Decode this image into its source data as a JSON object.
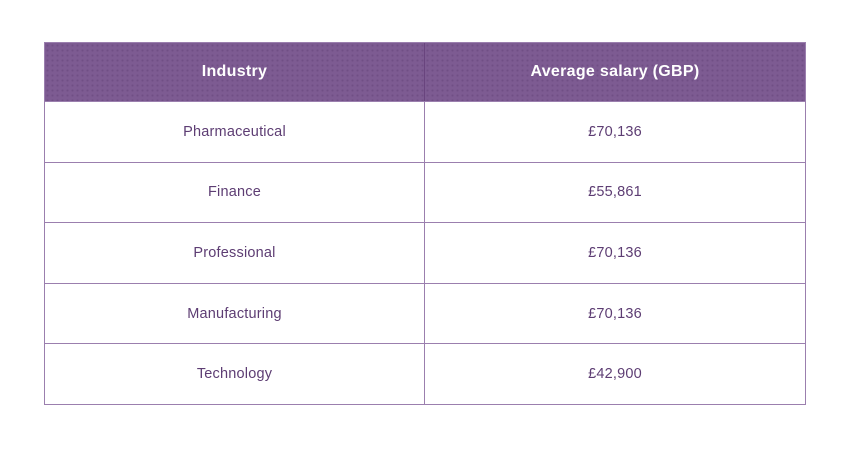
{
  "colors": {
    "header_bg": "#7d5b92",
    "border": "#9b7fae",
    "header_text": "#ffffff",
    "body_text": "#5d3d73"
  },
  "table": {
    "columns": {
      "industry": "Industry",
      "salary": "Average salary (GBP)"
    },
    "rows": [
      {
        "industry": "Pharmaceutical",
        "salary": "£70,136"
      },
      {
        "industry": "Finance",
        "salary": "£55,861"
      },
      {
        "industry": "Professional",
        "salary": "£70,136"
      },
      {
        "industry": "Manufacturing",
        "salary": "£70,136"
      },
      {
        "industry": "Technology",
        "salary": "£42,900"
      }
    ]
  },
  "chart_data": {
    "type": "table",
    "title": "",
    "columns": [
      "Industry",
      "Average salary (GBP)"
    ],
    "rows": [
      [
        "Pharmaceutical",
        "£70,136"
      ],
      [
        "Finance",
        "£55,861"
      ],
      [
        "Professional",
        "£70,136"
      ],
      [
        "Manufacturing",
        "£70,136"
      ],
      [
        "Technology",
        "£42,900"
      ]
    ],
    "categories": [
      "Pharmaceutical",
      "Finance",
      "Professional",
      "Manufacturing",
      "Technology"
    ],
    "values_gbp": [
      70136,
      55861,
      70136,
      70136,
      42900
    ]
  }
}
